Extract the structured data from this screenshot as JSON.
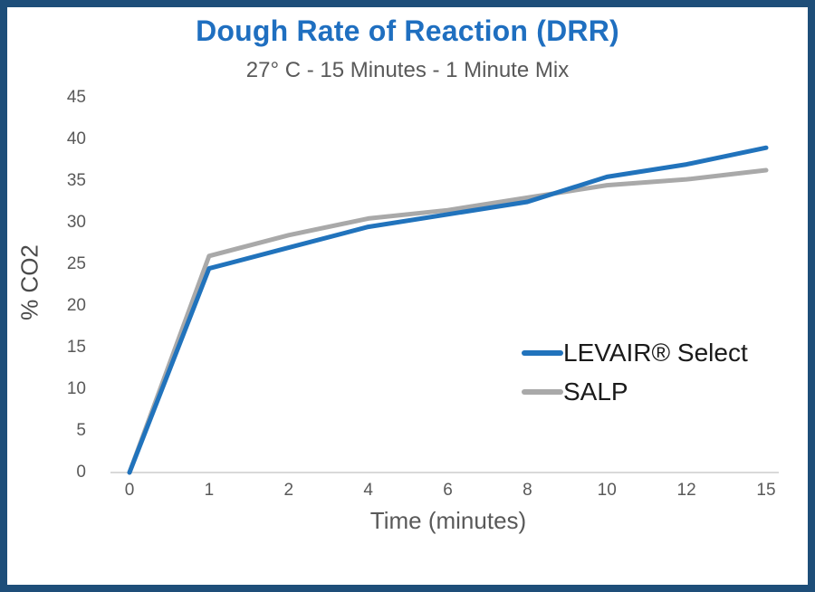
{
  "frame": {
    "border_color": "#1E4E79",
    "background": "#FFFFFF"
  },
  "chart_data": {
    "type": "line",
    "title": "Dough Rate of Reaction (DRR)",
    "subtitle": "27° C - 15 Minutes - 1 Minute Mix",
    "xlabel": "Time (minutes)",
    "ylabel": "% CO2",
    "categories": [
      "0",
      "1",
      "2",
      "4",
      "6",
      "8",
      "10",
      "12",
      "15"
    ],
    "series": [
      {
        "name": "LEVAIR® Select",
        "color": "#2173BC",
        "values": [
          0,
          24.5,
          27,
          29.5,
          31,
          32.5,
          35.5,
          37,
          39
        ]
      },
      {
        "name": "SALP",
        "color": "#A9A9A9",
        "values": [
          0,
          26,
          28.5,
          30.5,
          31.5,
          33,
          34.5,
          35.2,
          36.3
        ]
      }
    ],
    "ylim": [
      0,
      45
    ],
    "yticks": [
      0,
      5,
      10,
      15,
      20,
      25,
      30,
      35,
      40,
      45
    ],
    "grid": "off",
    "legend_position": "center-right",
    "title_color": "#1F6FC0",
    "subtitle_color": "#595959",
    "axis_text_color": "#595959",
    "axis_line_color": "#D9D9D9",
    "line_width": 5
  }
}
